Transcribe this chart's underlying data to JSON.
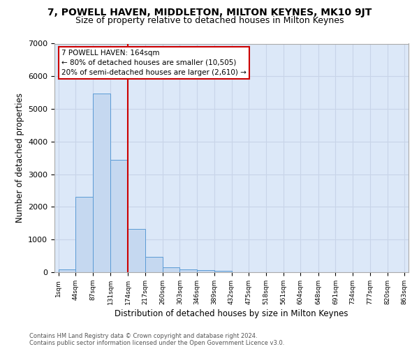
{
  "title": "7, POWELL HAVEN, MIDDLETON, MILTON KEYNES, MK10 9JT",
  "subtitle": "Size of property relative to detached houses in Milton Keynes",
  "xlabel": "Distribution of detached houses by size in Milton Keynes",
  "ylabel": "Number of detached properties",
  "footer1": "Contains HM Land Registry data © Crown copyright and database right 2024.",
  "footer2": "Contains public sector information licensed under the Open Government Licence v3.0.",
  "annotation_title": "7 POWELL HAVEN: 164sqm",
  "annotation_line1": "← 80% of detached houses are smaller (10,505)",
  "annotation_line2": "20% of semi-detached houses are larger (2,610) →",
  "bar_edges": [
    1,
    44,
    87,
    131,
    174,
    217,
    260,
    303,
    346,
    389,
    432,
    475,
    518,
    561,
    604,
    648,
    691,
    734,
    777,
    820,
    863
  ],
  "bar_heights": [
    80,
    2300,
    5480,
    3450,
    1320,
    460,
    150,
    90,
    70,
    40,
    0,
    0,
    0,
    0,
    0,
    0,
    0,
    0,
    0,
    0
  ],
  "bar_color": "#c5d8f0",
  "bar_edge_color": "#5b9bd5",
  "vline_color": "#cc0000",
  "annotation_box_color": "#cc0000",
  "annotation_bg": "#ffffff",
  "ylim": [
    0,
    7000
  ],
  "yticks": [
    0,
    1000,
    2000,
    3000,
    4000,
    5000,
    6000,
    7000
  ],
  "grid_color": "#c8d4e8",
  "bg_color": "#dce8f8",
  "title_fontsize": 10,
  "subtitle_fontsize": 9
}
